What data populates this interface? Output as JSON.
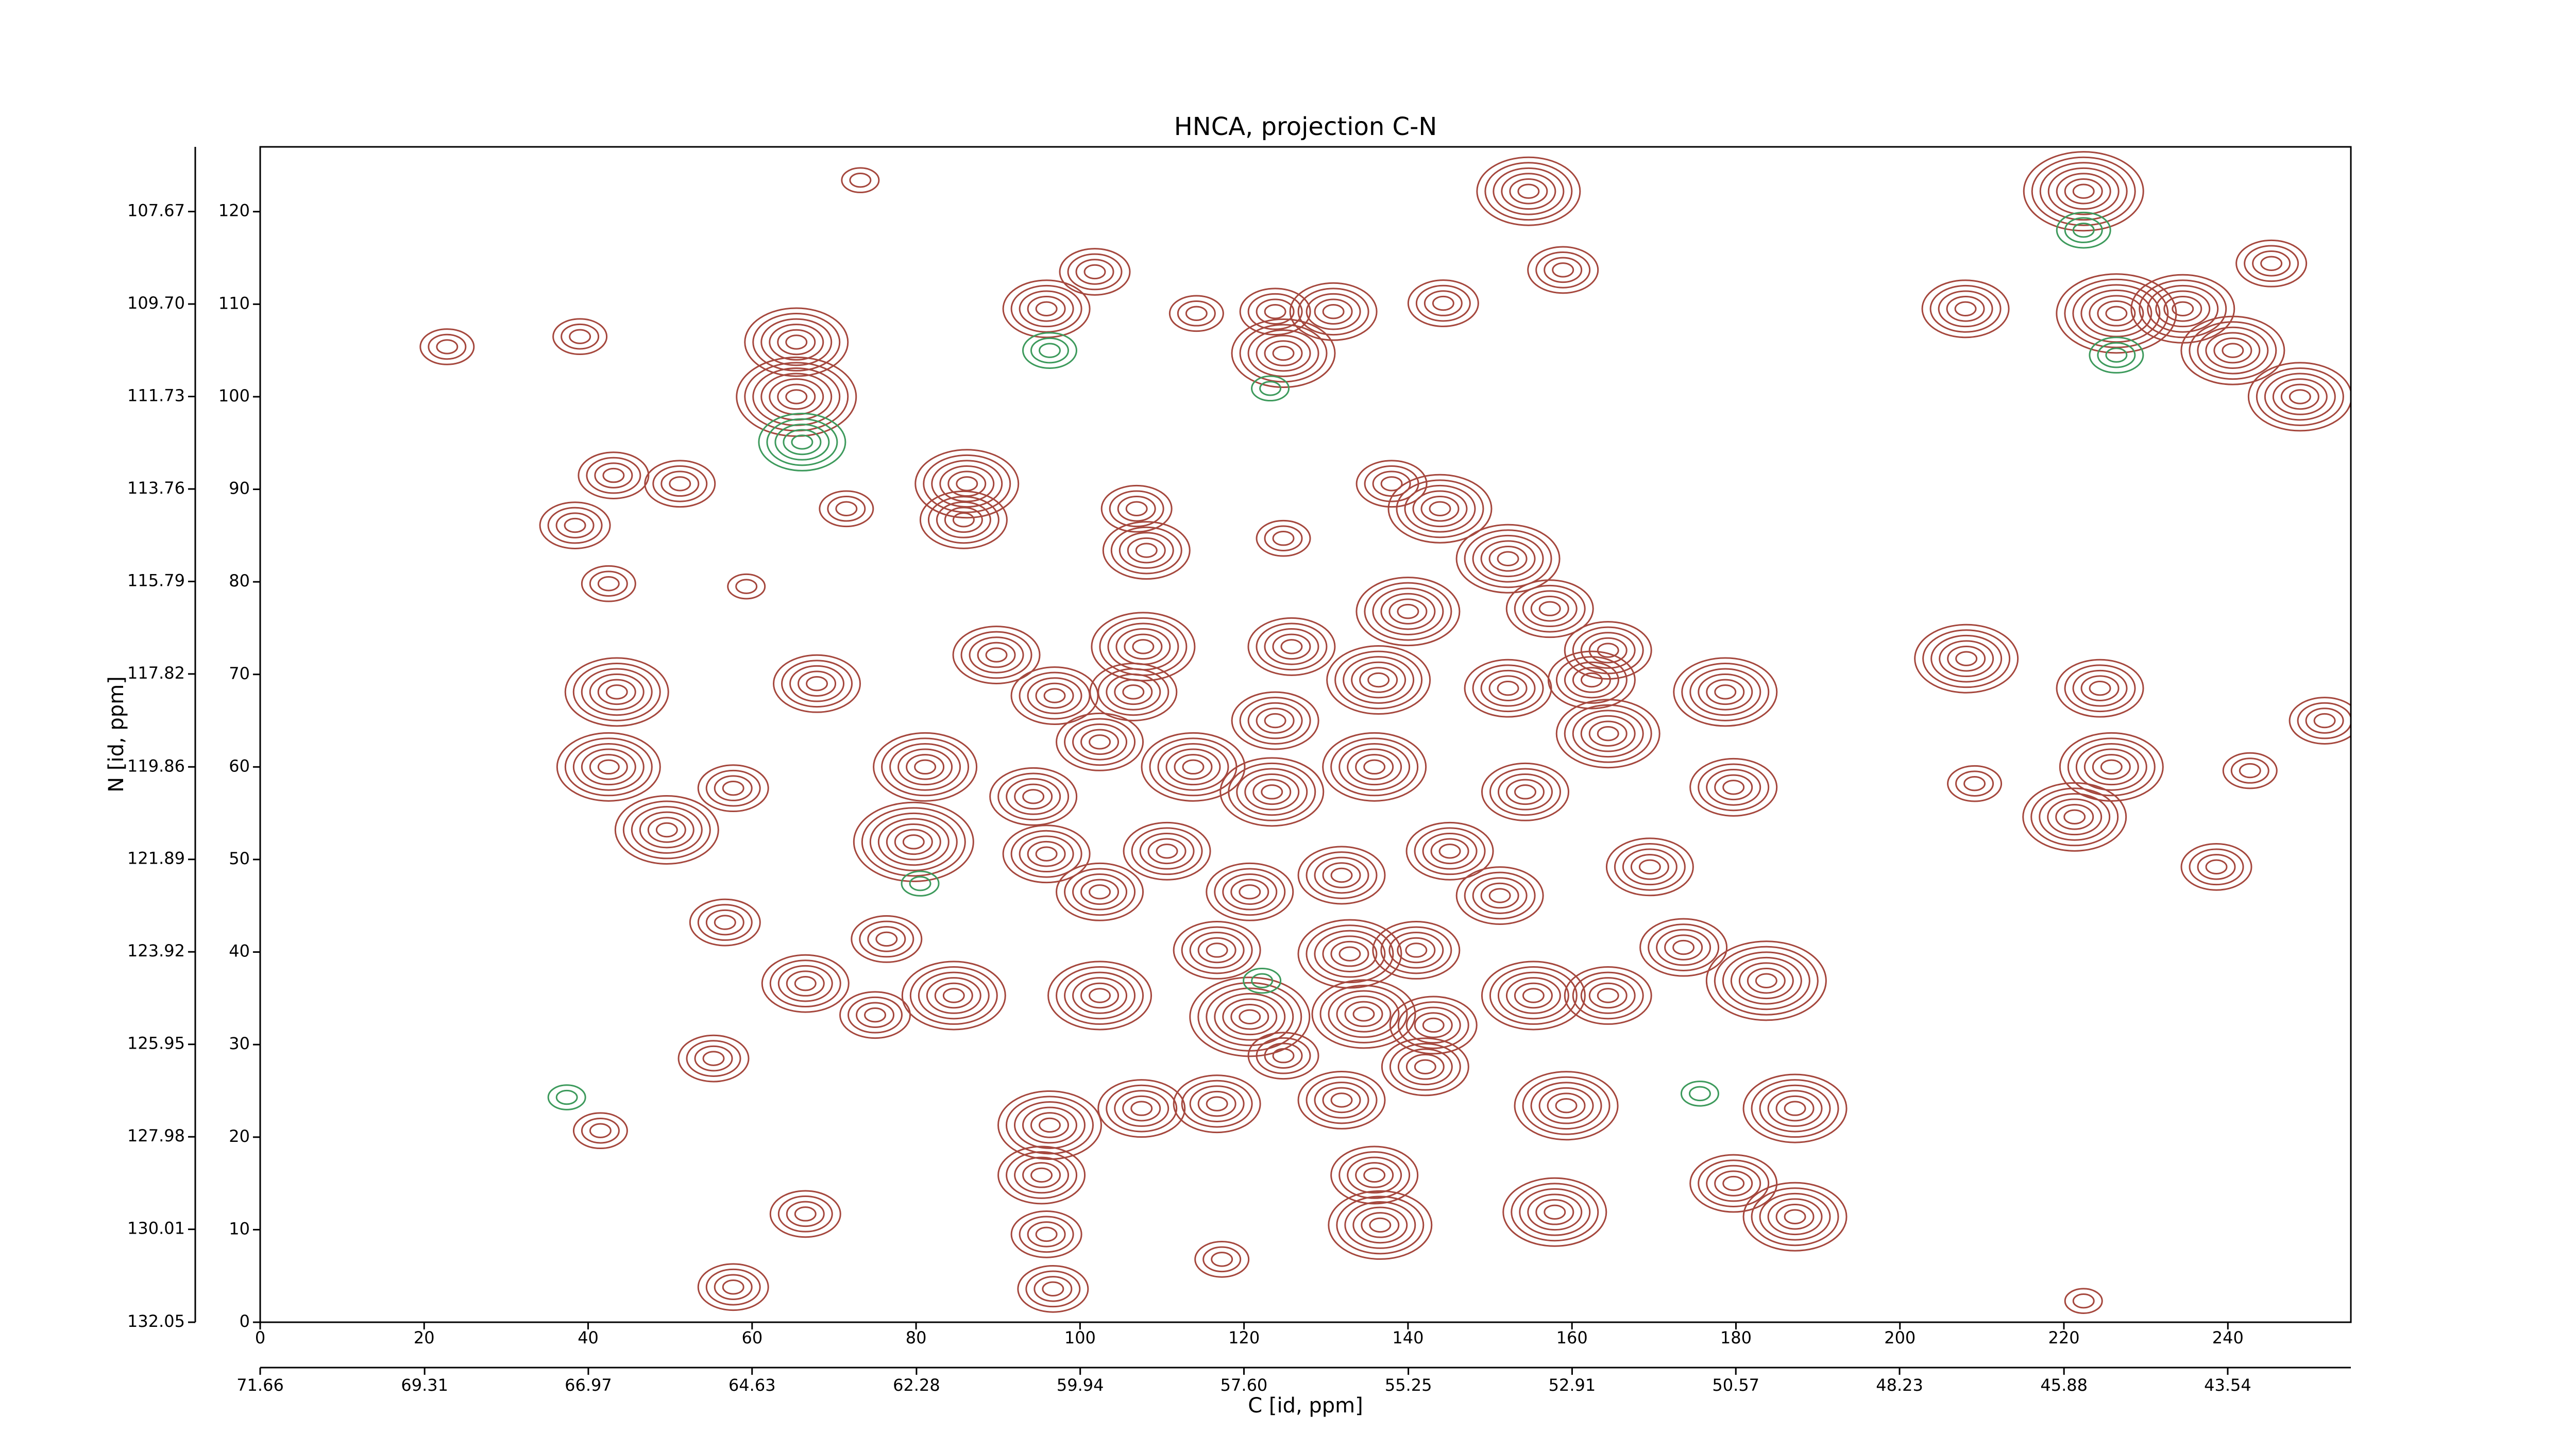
{
  "chart_data": {
    "type": "contour",
    "title": "HNCA, projection C-N",
    "xlabel": "C [id, ppm]",
    "ylabel": "N [id, ppm]",
    "xlim": [
      0,
      255
    ],
    "xticks": [
      0,
      20,
      40,
      60,
      80,
      100,
      120,
      140,
      160,
      180,
      200,
      220,
      240
    ],
    "ylim": [
      0,
      127
    ],
    "yticks": [
      0,
      10,
      20,
      30,
      40,
      50,
      60,
      70,
      80,
      90,
      100,
      110,
      120
    ],
    "x2lim": [
      71.66,
      41.78
    ],
    "x2ticks": [
      71.66,
      69.31,
      66.97,
      64.63,
      62.28,
      59.94,
      {
        "value": 57.6,
        "label": "57.60"
      },
      55.25,
      52.91,
      50.57,
      48.23,
      45.88,
      43.54
    ],
    "y2lim": [
      132.05,
      106.25
    ],
    "y2ticks": [
      132.05,
      130.01,
      127.98,
      125.95,
      123.92,
      121.89,
      119.86,
      117.82,
      115.79,
      113.76,
      111.73,
      {
        "value": 109.7,
        "label": "109.70"
      },
      107.67
    ],
    "series": [
      {
        "color": "#a5473d",
        "x": [
          154.7,
          222.4,
          73.2,
          101.8,
          95.9,
          114.2,
          123.8,
          130.9,
          124.8,
          144.3,
          158.9,
          208,
          226.4,
          234.5,
          245.3,
          240.6,
          248.8,
          22.8,
          39,
          65.4,
          65.4,
          43.1,
          51.2,
          38.4,
          71.5,
          86.2,
          85.8,
          106.9,
          108.1,
          124.8,
          138,
          143.9,
          152.2,
          42.5,
          59.3,
          89.8,
          107.7,
          125.8,
          140,
          157.3,
          164.4,
          208.1,
          67.9,
          43.5,
          96.9,
          106.5,
          123.8,
          136.4,
          152.2,
          162.4,
          178.7,
          224.4,
          164.4,
          251.8,
          42.5,
          81.1,
          113.8,
          135.9,
          102.4,
          179.7,
          225.8,
          209.1,
          242.7,
          57.7,
          94.3,
          123.4,
          154.3,
          49.6,
          79.7,
          95.9,
          131.9,
          145.1,
          169.5,
          221.3,
          238.6,
          110.6,
          102.4,
          120.7,
          151.2,
          56.7,
          76.4,
          116.7,
          132.9,
          141,
          183.7,
          173.6,
          66.5,
          84.6,
          102.4,
          120.7,
          134.6,
          155.3,
          164.4,
          75,
          55.3,
          124.8,
          143.1,
          96.3,
          107.5,
          116.7,
          131.9,
          142.1,
          159.3,
          187.2,
          179.7,
          187.2,
          95.3,
          95.9,
          96.7,
          135.9,
          136.6,
          157.9,
          117.3,
          66.5,
          57.7,
          41.5,
          222.4
        ],
        "y": [
          122.2,
          122.2,
          123.4,
          113.5,
          109.5,
          109,
          109.2,
          109.2,
          104.7,
          110.1,
          113.7,
          109.5,
          109,
          109.5,
          114.4,
          105,
          100,
          105.4,
          106.5,
          105.9,
          100,
          91.5,
          90.6,
          86.1,
          87.9,
          90.6,
          86.7,
          87.9,
          83.4,
          84.7,
          90.6,
          87.9,
          82.5,
          79.8,
          79.5,
          72.1,
          73,
          73,
          76.8,
          77.1,
          72.6,
          71.7,
          69,
          68.1,
          67.7,
          68.1,
          65,
          69.4,
          68.5,
          69.4,
          68.1,
          68.5,
          63.6,
          65,
          60,
          60,
          60,
          60,
          62.7,
          57.8,
          60,
          58.2,
          59.6,
          57.7,
          56.8,
          57.3,
          57.3,
          53.2,
          51.9,
          50.6,
          48.3,
          50.9,
          49.2,
          54.6,
          49.2,
          50.9,
          46.5,
          46.5,
          46.1,
          43.2,
          41.4,
          40.2,
          39.8,
          40.2,
          36.9,
          40.5,
          36.6,
          35.3,
          35.3,
          33,
          33.3,
          35.3,
          35.3,
          33.2,
          28.5,
          28.8,
          32.1,
          21.3,
          23.1,
          23.6,
          24,
          27.6,
          23.4,
          23.1,
          15,
          11.4,
          15.9,
          9.5,
          3.6,
          15.9,
          10.5,
          11.9,
          6.8,
          11.7,
          3.8,
          20.7,
          2.3
        ],
        "levels": [
          6,
          7,
          2,
          4,
          5,
          3,
          4,
          5,
          6,
          4,
          4,
          5,
          7,
          6,
          4,
          6,
          6,
          3,
          3,
          6,
          7,
          4,
          4,
          4,
          3,
          6,
          5,
          4,
          5,
          3,
          4,
          6,
          6,
          3,
          2,
          5,
          6,
          5,
          6,
          5,
          5,
          6,
          5,
          6,
          5,
          5,
          5,
          6,
          5,
          5,
          6,
          5,
          6,
          4,
          6,
          6,
          6,
          6,
          5,
          5,
          6,
          3,
          3,
          4,
          5,
          6,
          5,
          6,
          7,
          5,
          5,
          5,
          5,
          6,
          4,
          5,
          5,
          5,
          5,
          4,
          4,
          5,
          6,
          5,
          7,
          5,
          5,
          6,
          6,
          7,
          6,
          6,
          5,
          4,
          4,
          4,
          5,
          6,
          5,
          5,
          5,
          5,
          6,
          6,
          5,
          6,
          5,
          4,
          4,
          5,
          6,
          6,
          3,
          4,
          4,
          3,
          2
        ]
      },
      {
        "color": "#3d9a5c",
        "x": [
          96.3,
          66.1,
          222.4,
          226.4,
          80.5,
          37.4,
          175.6,
          123.2,
          122.2
        ],
        "y": [
          105,
          95.1,
          118,
          104.5,
          47.4,
          24.3,
          24.7,
          100.9,
          36.9
        ],
        "levels": [
          3,
          5,
          3,
          3,
          2,
          2,
          2,
          2,
          2
        ]
      }
    ]
  }
}
